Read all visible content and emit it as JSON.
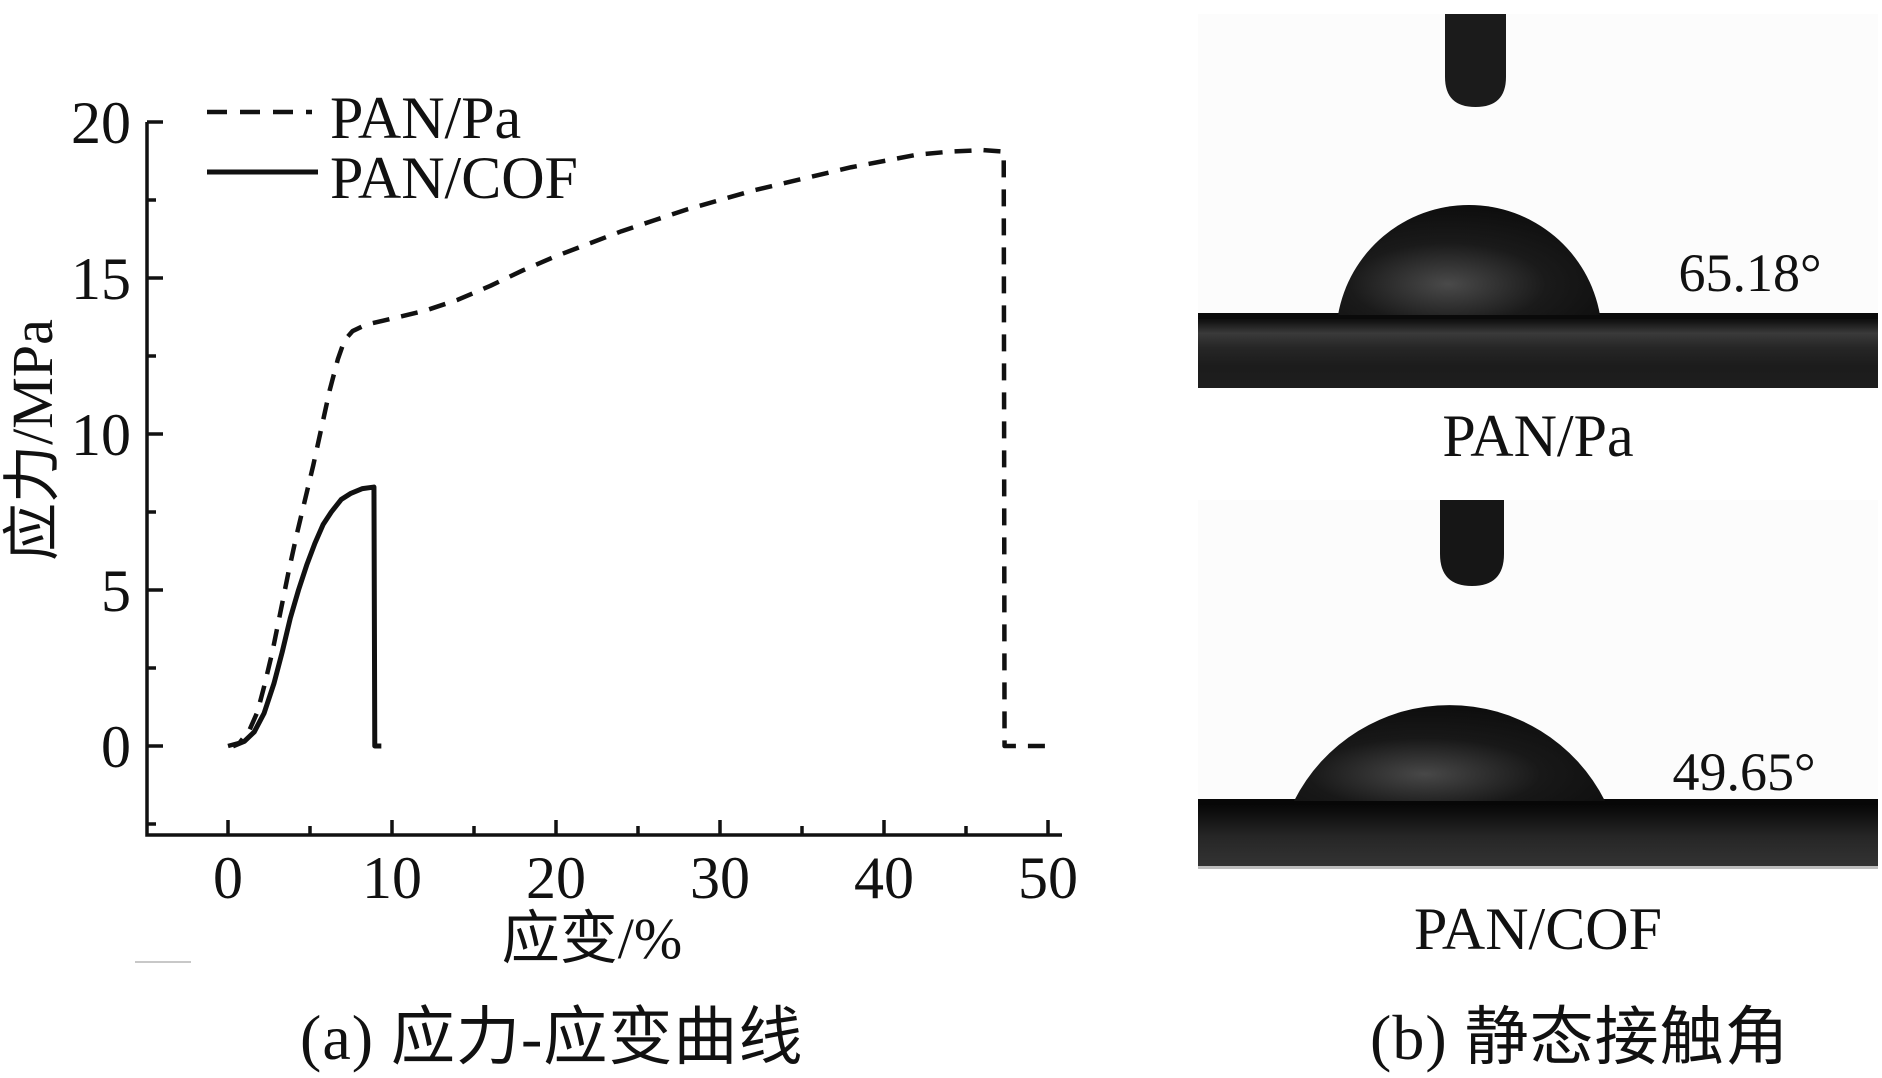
{
  "chart_data": {
    "type": "line",
    "title": "",
    "xlabel": "应变/%",
    "ylabel": "应力/MPa",
    "xlim": [
      -5,
      51
    ],
    "ylim": [
      -2.85,
      20
    ],
    "x_ticks": [
      0,
      10,
      20,
      30,
      40,
      50
    ],
    "x_minor_ticks": [
      5,
      15,
      25,
      35,
      45
    ],
    "y_ticks": [
      0,
      5,
      10,
      15,
      20
    ],
    "y_minor_ticks": [
      -2.5,
      2.5,
      7.5,
      12.5,
      17.5
    ],
    "grid": false,
    "legend_position": "top-left-inside",
    "series": [
      {
        "name": "PAN/Pa",
        "style": "dashed",
        "points": [
          [
            0,
            0
          ],
          [
            0.7,
            0.1
          ],
          [
            1.3,
            0.5
          ],
          [
            1.8,
            1.1
          ],
          [
            2.2,
            1.9
          ],
          [
            2.7,
            3.0
          ],
          [
            3.2,
            4.3
          ],
          [
            3.7,
            5.6
          ],
          [
            4.2,
            6.8
          ],
          [
            4.7,
            7.9
          ],
          [
            5.2,
            9.0
          ],
          [
            5.7,
            10.2
          ],
          [
            6.2,
            11.4
          ],
          [
            6.7,
            12.4
          ],
          [
            7.1,
            13.0
          ],
          [
            7.6,
            13.3
          ],
          [
            8.4,
            13.5
          ],
          [
            10,
            13.7
          ],
          [
            12,
            13.95
          ],
          [
            14,
            14.3
          ],
          [
            16,
            14.75
          ],
          [
            18,
            15.25
          ],
          [
            20,
            15.7
          ],
          [
            22,
            16.1
          ],
          [
            24,
            16.5
          ],
          [
            26,
            16.85
          ],
          [
            28,
            17.2
          ],
          [
            30,
            17.5
          ],
          [
            32,
            17.8
          ],
          [
            34,
            18.05
          ],
          [
            36,
            18.3
          ],
          [
            38,
            18.55
          ],
          [
            40,
            18.75
          ],
          [
            42,
            18.95
          ],
          [
            44,
            19.05
          ],
          [
            46,
            19.1
          ],
          [
            47.3,
            19.05
          ],
          [
            47.35,
            0
          ],
          [
            49.9,
            0
          ]
        ]
      },
      {
        "name": "PAN/COF",
        "style": "solid",
        "points": [
          [
            0.3,
            0
          ],
          [
            1,
            0.15
          ],
          [
            1.6,
            0.45
          ],
          [
            2.2,
            1.05
          ],
          [
            2.8,
            2.0
          ],
          [
            3.3,
            3.0
          ],
          [
            3.8,
            4.1
          ],
          [
            4.3,
            5.0
          ],
          [
            4.8,
            5.8
          ],
          [
            5.3,
            6.5
          ],
          [
            5.8,
            7.1
          ],
          [
            6.3,
            7.5
          ],
          [
            6.9,
            7.9
          ],
          [
            7.5,
            8.1
          ],
          [
            8.2,
            8.25
          ],
          [
            8.9,
            8.3
          ],
          [
            8.95,
            0
          ],
          [
            9.35,
            0
          ]
        ]
      }
    ]
  },
  "panel_a": {
    "caption": "(a) 应力-应变曲线"
  },
  "panel_b": {
    "caption": "(b) 静态接触角",
    "photos": [
      {
        "label": "PAN/Pa",
        "angle": "65.18°"
      },
      {
        "label": "PAN/COF",
        "angle": "49.65°"
      }
    ]
  }
}
